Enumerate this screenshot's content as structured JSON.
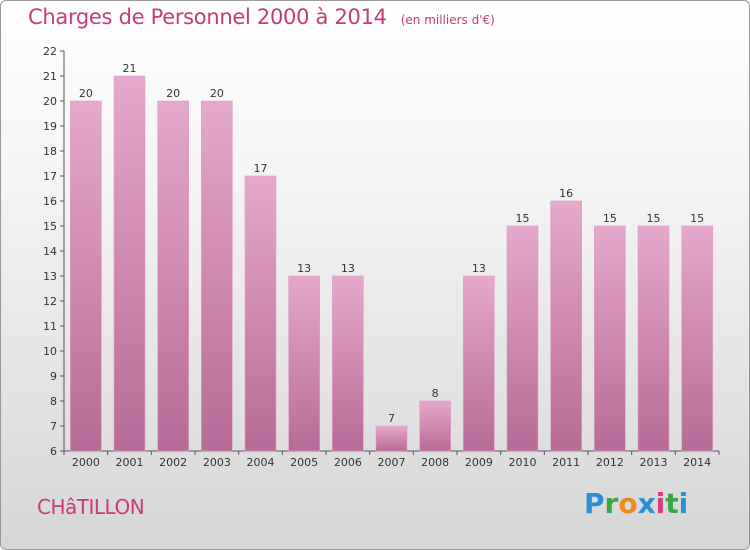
{
  "header": {
    "title": "Charges de Personnel 2000 à 2014",
    "subtitle": "(en milliers d'€)"
  },
  "commune": "CHâTILLON",
  "logo": {
    "text": "Proxiti",
    "colors": [
      "#2b8fd6",
      "#3aa64a",
      "#f08a1c",
      "#2b8fd6",
      "#e03c7a",
      "#3aa64a"
    ]
  },
  "chart_data": {
    "type": "bar",
    "title": "Charges de Personnel 2000 à 2014",
    "subtitle": "(en milliers d'€)",
    "xlabel": "",
    "ylabel": "",
    "categories": [
      "2000",
      "2001",
      "2002",
      "2003",
      "2004",
      "2005",
      "2006",
      "2007",
      "2008",
      "2009",
      "2010",
      "2011",
      "2012",
      "2013",
      "2014"
    ],
    "values": [
      20,
      21,
      20,
      20,
      17,
      13,
      13,
      7,
      8,
      13,
      15,
      16,
      15,
      15,
      15
    ],
    "data_labels": [
      "20",
      "21",
      "20",
      "20",
      "17",
      "13",
      "13",
      "7",
      "8",
      "13",
      "15",
      "16",
      "15",
      "15",
      "15"
    ],
    "ylim": [
      6,
      22
    ],
    "yticks": [
      6,
      7,
      8,
      9,
      10,
      11,
      12,
      13,
      14,
      15,
      16,
      17,
      18,
      19,
      20,
      21,
      22
    ],
    "grid": false,
    "legend": "none",
    "bar_color_top": "#e6a8cc",
    "bar_color_bottom": "#b86a97"
  }
}
